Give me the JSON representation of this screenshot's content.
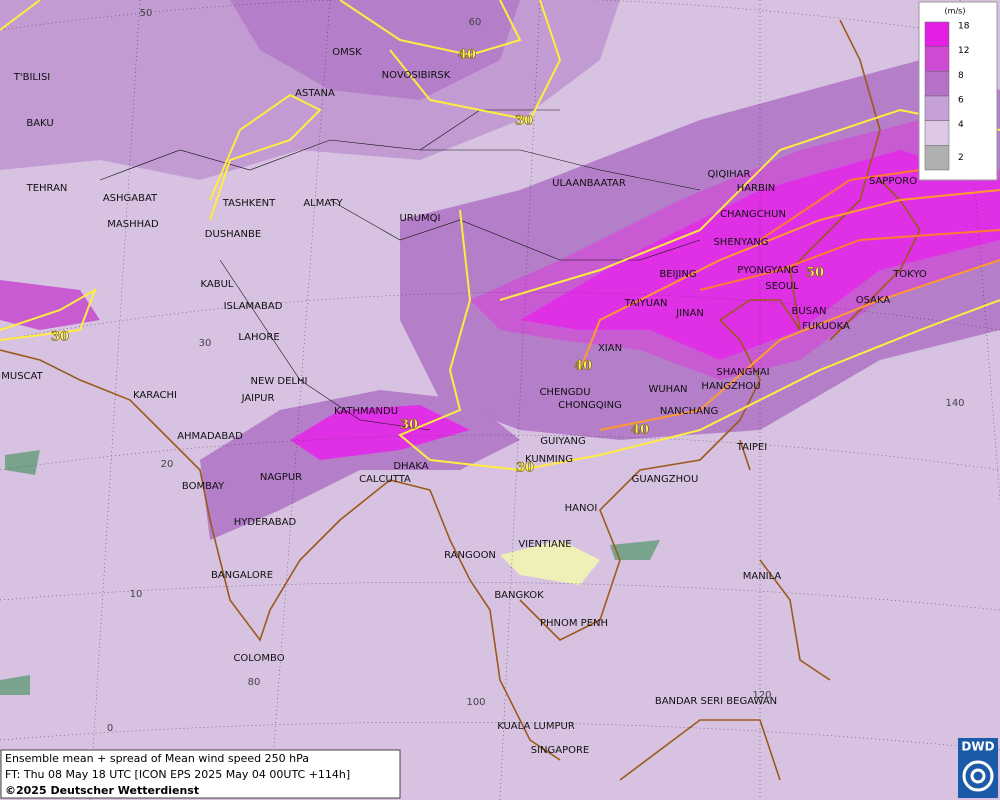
{
  "map": {
    "cities": [
      "OMSK",
      "NOVOSIBIRSK",
      "ASTANA",
      "T'BILISI",
      "BAKU",
      "TEHRAN",
      "ASHGABAT",
      "MASHHAD",
      "TASHKENT",
      "ALMATY",
      "DUSHANBE",
      "URUMQI",
      "ULAANBAATAR",
      "QIQIHAR",
      "HARBIN",
      "CHANGCHUN",
      "SHENYANG",
      "BEIJING",
      "PYONGYANG",
      "SEOUL",
      "TOKYO",
      "SAPPORO",
      "OSAKA",
      "BUSAN",
      "FUKUOKA",
      "TAIYUAN",
      "JINAN",
      "XIAN",
      "SHANGHAI",
      "HANGZHOU",
      "WUHAN",
      "NANCHANG",
      "CHENGDU",
      "CHONGQING",
      "GUIYANG",
      "KUNMING",
      "TAIPEI",
      "GUANGZHOU",
      "HANOI",
      "KABUL",
      "ISLAMABAD",
      "LAHORE",
      "NEW DELHI",
      "JAIPUR",
      "KARACHI",
      "MUSCAT",
      "AHMADABAD",
      "KATHMANDU",
      "DHAKA",
      "CALCUTTA",
      "NAGPUR",
      "BOMBAY",
      "HYDERABAD",
      "BANGALORE",
      "COLOMBO",
      "RANGOON",
      "VIENTIANE",
      "BANGKOK",
      "PHNOM PENH",
      "MANILA",
      "BANDAR SERI BEGAWAN",
      "KUALA LUMPUR",
      "SINGAPORE"
    ],
    "grid_labels": [
      50,
      60,
      30,
      20,
      10,
      0,
      80,
      100,
      120,
      140
    ],
    "contour_labels": [
      40,
      30,
      30,
      30,
      40,
      40,
      30,
      50
    ],
    "legend": {
      "unit": "(m/s)",
      "ticks": [
        18,
        12,
        8,
        6,
        4,
        2
      ]
    },
    "caption": [
      "Ensemble mean + spread of Mean wind speed 250 hPa",
      "FT: Thu 08 May 18 UTC [ICON EPS 2025 May 04 00UTC +114h]",
      "©2025 Deutscher Wetterdienst"
    ],
    "logo": "DWD"
  }
}
